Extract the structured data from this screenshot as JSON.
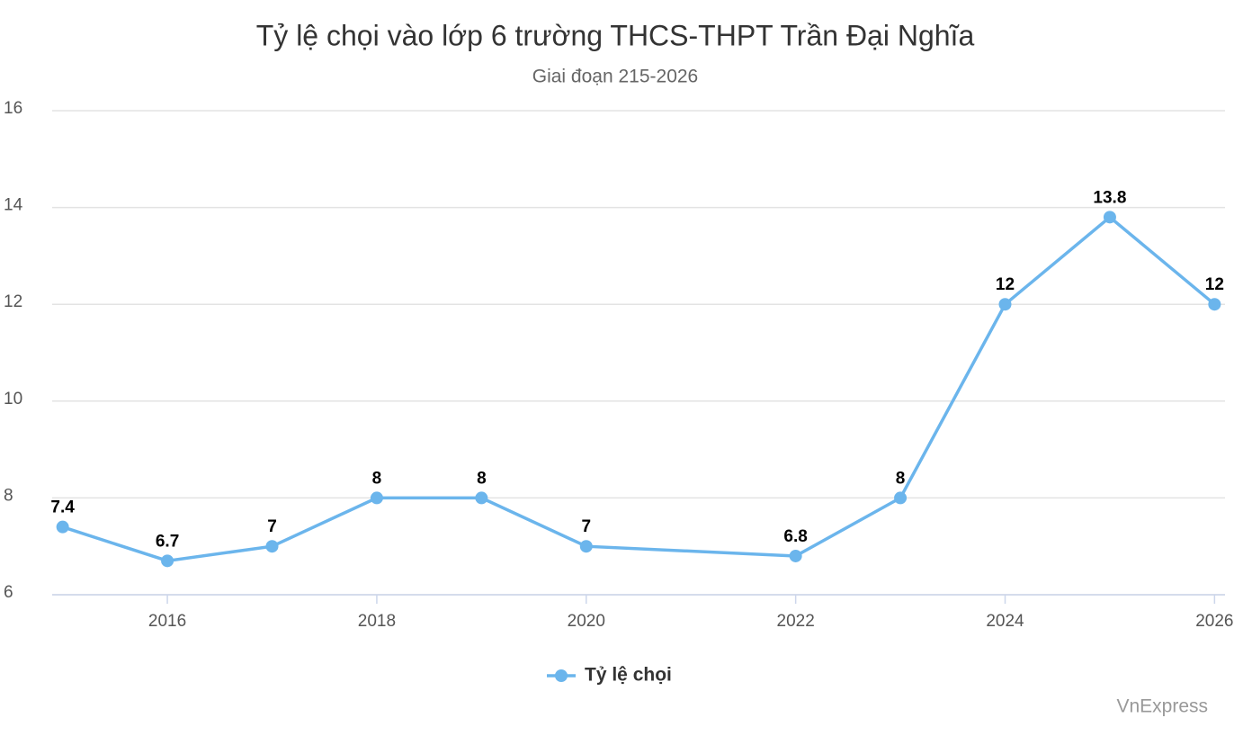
{
  "chart_data": {
    "type": "line",
    "title": "Tỷ lệ chọi vào lớp 6 trường THCS-THPT Trần Đại Nghĩa",
    "subtitle": "Giai đoạn 215-2026",
    "x": [
      2015,
      2016,
      2017,
      2018,
      2019,
      2020,
      2022,
      2023,
      2024,
      2025,
      2026
    ],
    "series": [
      {
        "name": "Tỷ lệ chọi",
        "color": "#6bb5ec",
        "values": [
          7.4,
          6.7,
          7,
          8,
          8,
          7,
          6.8,
          8,
          12,
          13.8,
          12
        ]
      }
    ],
    "xlim": [
      2014.9,
      2026.1
    ],
    "xticks": [
      2016,
      2018,
      2020,
      2022,
      2024,
      2026
    ],
    "ylim": [
      6,
      16
    ],
    "yticks": [
      6,
      8,
      10,
      12,
      14,
      16
    ],
    "grid": true,
    "legend": "bottom",
    "source": "VnExpress"
  }
}
